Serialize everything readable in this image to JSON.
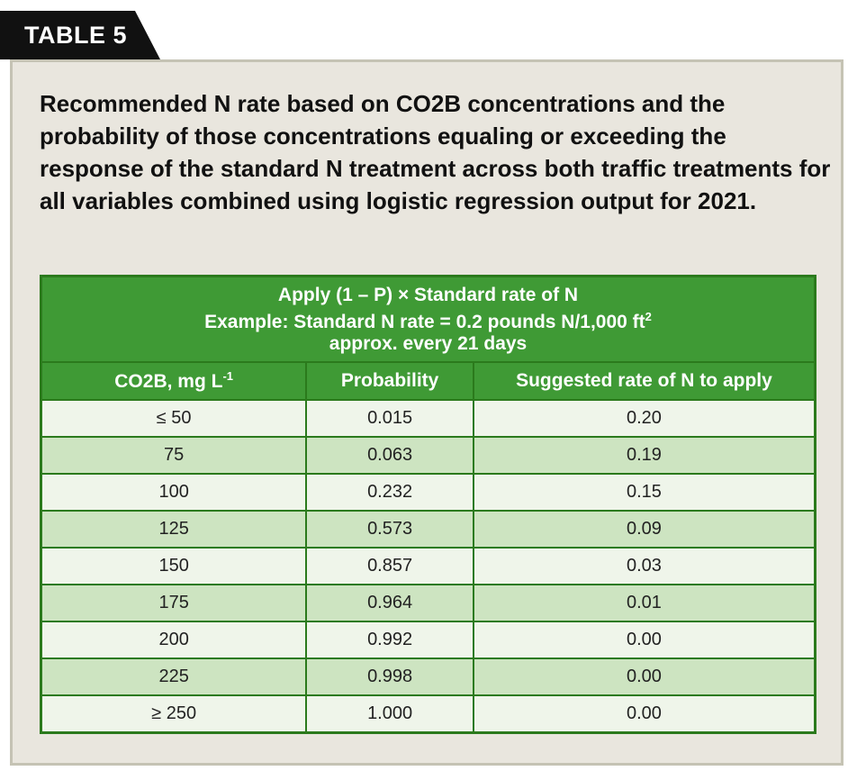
{
  "tab_label": "TABLE 5",
  "caption": "Recommended N rate based on CO2B concentrations and the probability of those concentrations equaling or exceeding the response of the standard N treatment across both traffic treatments for all variables combined using logistic regression output for 2021.",
  "table": {
    "header_lines": {
      "line1": "Apply (1 – P) × Standard rate of N",
      "line2_main": "Example: Standard N rate = 0.2 pounds N/1,000 ft",
      "line2_sup": "2",
      "line3": "approx. every 21 days"
    },
    "columns": {
      "col1_main": "CO2B, mg L",
      "col1_sup": "-1",
      "col2": "Probability",
      "col3": "Suggested rate of N to apply"
    },
    "rows": [
      {
        "co2b": "≤ 50",
        "probability": "0.015",
        "rate": "0.20"
      },
      {
        "co2b": "75",
        "probability": "0.063",
        "rate": "0.19"
      },
      {
        "co2b": "100",
        "probability": "0.232",
        "rate": "0.15"
      },
      {
        "co2b": "125",
        "probability": "0.573",
        "rate": "0.09"
      },
      {
        "co2b": "150",
        "probability": "0.857",
        "rate": "0.03"
      },
      {
        "co2b": "175",
        "probability": "0.964",
        "rate": "0.01"
      },
      {
        "co2b": "200",
        "probability": "0.992",
        "rate": "0.00"
      },
      {
        "co2b": "225",
        "probability": "0.998",
        "rate": "0.00"
      },
      {
        "co2b": "≥ 250",
        "probability": "1.000",
        "rate": "0.00"
      }
    ]
  }
}
